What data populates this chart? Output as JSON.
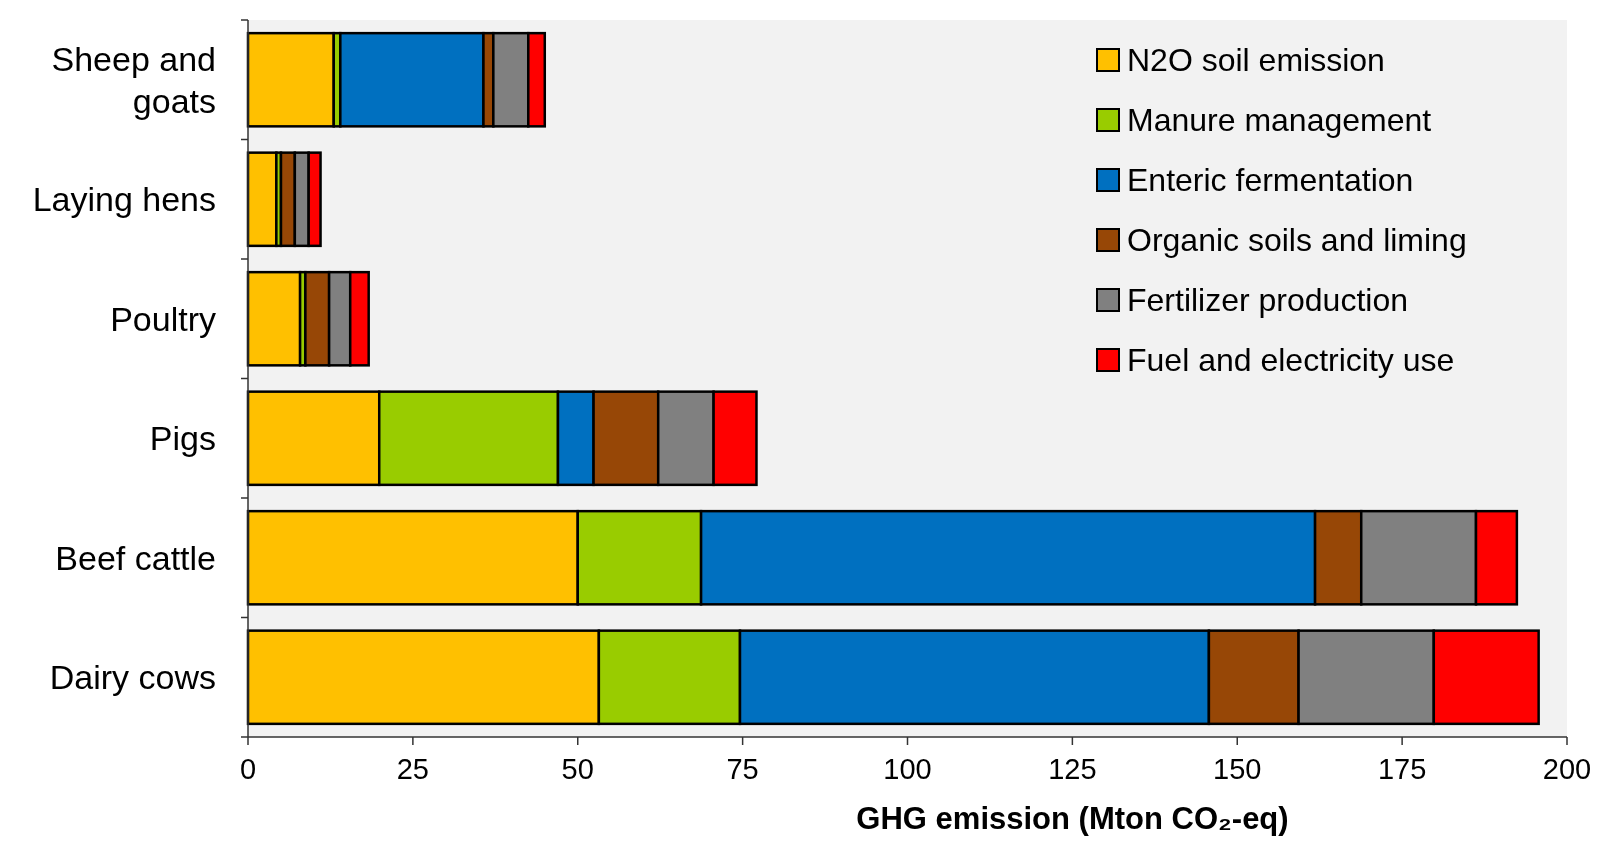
{
  "chart_data": {
    "type": "bar",
    "orientation": "horizontal",
    "stacked": true,
    "xlabel": "GHG emission (Mton CO₂-eq)",
    "categories": [
      "Sheep and goats",
      "Laying hens",
      "Poultry",
      "Pigs",
      "Beef cattle",
      "Dairy cows"
    ],
    "series": [
      {
        "name": "N2O soil emission",
        "color": "#ffc000",
        "values": [
          13,
          4.3,
          7.9,
          19.9,
          50,
          53.2
        ]
      },
      {
        "name": "Manure management",
        "color": "#99cc00",
        "values": [
          1,
          0.7,
          0.8,
          27.1,
          18.7,
          21.4
        ]
      },
      {
        "name": "Enteric fermentation",
        "color": "#0070c0",
        "values": [
          21.7,
          0,
          0,
          5.4,
          93.1,
          71.1
        ]
      },
      {
        "name": "Organic soils and liming",
        "color": "#974706",
        "values": [
          1.5,
          2.1,
          3.6,
          9.8,
          7,
          13.6
        ]
      },
      {
        "name": "Fertilizer production",
        "color": "#808080",
        "values": [
          5.3,
          2.1,
          3.2,
          8.4,
          17.4,
          20.5
        ]
      },
      {
        "name": "Fuel and electricity use",
        "color": "#ff0000",
        "values": [
          2.5,
          1.8,
          2.8,
          6.5,
          6.2,
          15.9
        ]
      }
    ],
    "xlim": [
      0,
      200
    ],
    "xticks": [
      0,
      25,
      50,
      75,
      100,
      125,
      150,
      175,
      200
    ],
    "legend": "top right"
  }
}
